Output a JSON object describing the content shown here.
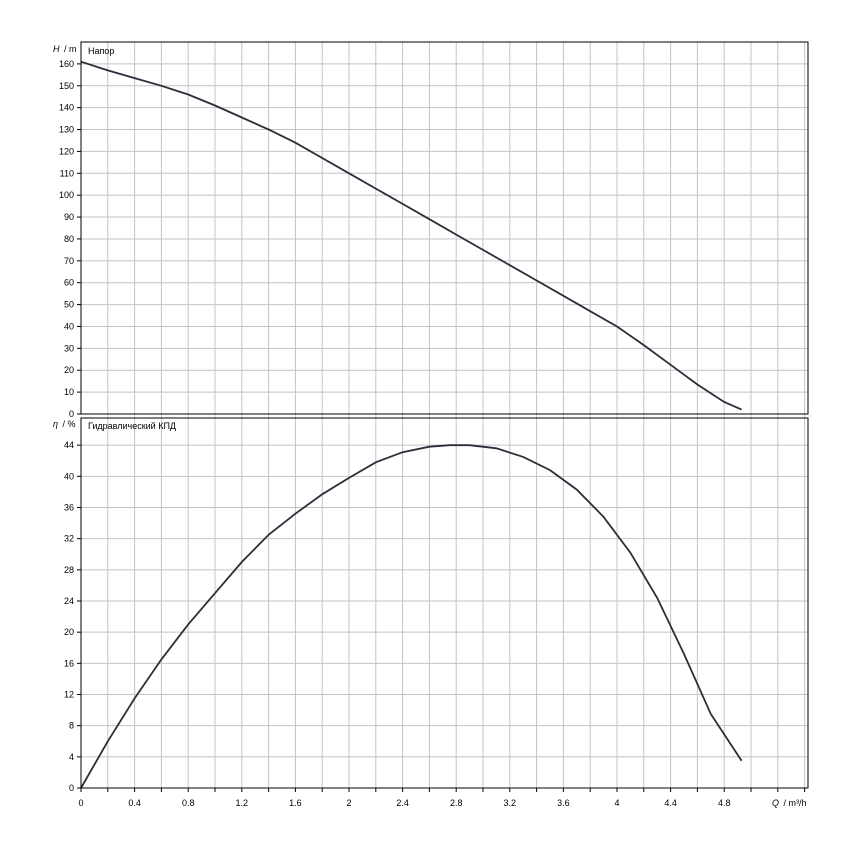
{
  "chart_data": [
    {
      "type": "line",
      "title": "Напор",
      "y_symbol": "H",
      "y_unit": "/ m",
      "ylim": [
        0,
        170
      ],
      "yticks": [
        0,
        10,
        20,
        30,
        40,
        50,
        60,
        70,
        80,
        90,
        100,
        110,
        120,
        130,
        140,
        150,
        160
      ],
      "grid": true,
      "series": [
        {
          "x": [
            0,
            0.2,
            0.4,
            0.6,
            0.8,
            1.0,
            1.2,
            1.4,
            1.6,
            1.8,
            2.0,
            2.2,
            2.4,
            2.6,
            2.8,
            3.0,
            3.2,
            3.4,
            3.6,
            3.8,
            4.0,
            4.2,
            4.4,
            4.6,
            4.8,
            4.93
          ],
          "y": [
            161,
            157,
            153.5,
            150,
            146,
            141,
            135.5,
            130,
            124,
            117,
            110,
            103,
            96,
            89,
            82,
            75,
            68,
            61,
            54,
            47,
            40,
            31.5,
            22.5,
            13.5,
            5.5,
            2
          ]
        }
      ]
    },
    {
      "type": "line",
      "title": "Гидравлический КПД",
      "y_symbol": "η",
      "y_unit": "/ %",
      "x_symbol": "Q",
      "x_unit": "/ m³/h",
      "ylim": [
        0,
        48
      ],
      "yticks": [
        0,
        4,
        8,
        12,
        16,
        20,
        24,
        28,
        32,
        36,
        40,
        44
      ],
      "xlim": [
        0,
        5.4
      ],
      "xticks": [
        0,
        0.4,
        0.8,
        1.2,
        1.6,
        2,
        2.4,
        2.8,
        3.2,
        3.6,
        4,
        4.4,
        4.8
      ],
      "xtick_labels": [
        "0",
        "0.4",
        "0.8",
        "1.2",
        "1.6",
        "2",
        "2.4",
        "2.8",
        "3.2",
        "3.6",
        "4",
        "4.4",
        "4.8"
      ],
      "grid": true,
      "series": [
        {
          "x": [
            0,
            0.2,
            0.4,
            0.6,
            0.8,
            1.0,
            1.2,
            1.4,
            1.6,
            1.8,
            2.0,
            2.2,
            2.4,
            2.6,
            2.75,
            2.9,
            3.1,
            3.3,
            3.5,
            3.7,
            3.9,
            4.1,
            4.3,
            4.5,
            4.7,
            4.93
          ],
          "y": [
            0,
            6,
            11.5,
            16.5,
            21,
            25,
            29,
            32.5,
            35.2,
            37.7,
            39.8,
            41.8,
            43.1,
            43.8,
            44,
            44,
            43.6,
            42.5,
            40.8,
            38.3,
            34.8,
            30.2,
            24.4,
            17.2,
            9.5,
            3.5
          ]
        }
      ]
    }
  ]
}
